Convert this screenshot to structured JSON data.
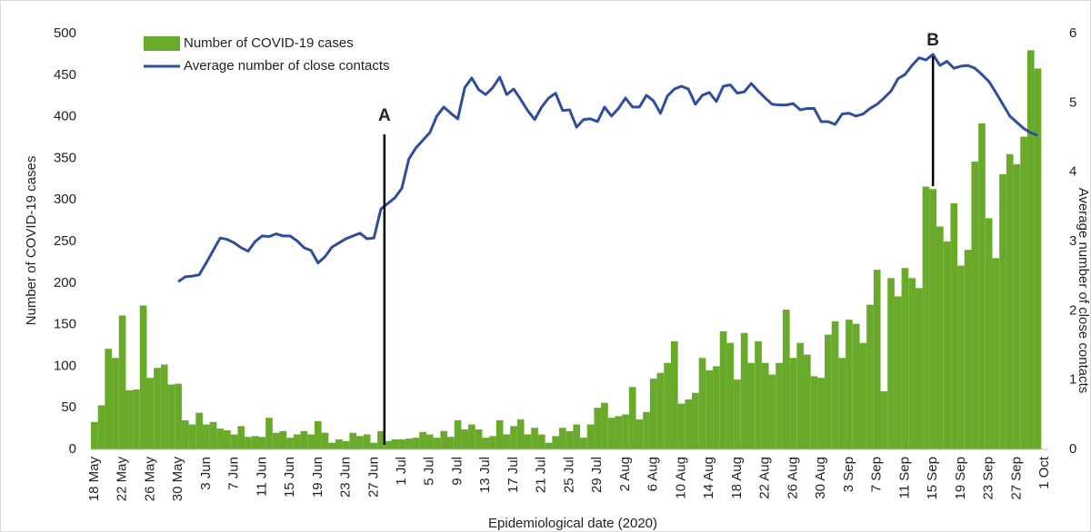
{
  "chart_data": {
    "type": "bar",
    "y_label": "Number of COVID-19 cases",
    "y2_label": "Average number of close contacts",
    "x_label": "Epidemiological date (2020)",
    "annotations": [
      "A",
      "B"
    ],
    "legend": "top-left",
    "categories": [
      "18 May",
      null,
      null,
      null,
      "22 May",
      null,
      null,
      null,
      "26 May",
      null,
      null,
      null,
      "30 May",
      null,
      null,
      null,
      "3 Jun",
      null,
      null,
      null,
      "7 Jun",
      null,
      null,
      null,
      "11 Jun",
      null,
      null,
      null,
      "15 Jun",
      null,
      null,
      null,
      "19 Jun",
      null,
      null,
      null,
      "23 Jun",
      null,
      null,
      null,
      "27 Jun",
      null,
      null,
      null,
      "1 Jul",
      null,
      null,
      null,
      "5 Jul",
      null,
      null,
      null,
      "9 Jul",
      null,
      null,
      null,
      "13 Jul",
      null,
      null,
      null,
      "17 Jul",
      null,
      null,
      null,
      "21 Jul",
      null,
      null,
      null,
      "25 Jul",
      null,
      null,
      null,
      "29 Jul",
      null,
      null,
      null,
      "2 Aug",
      null,
      null,
      null,
      "6 Aug",
      null,
      null,
      null,
      "10 Aug",
      null,
      null,
      null,
      "14 Aug",
      null,
      null,
      null,
      "18 Aug",
      null,
      null,
      null,
      "22 Aug",
      null,
      null,
      null,
      "26 Aug",
      null,
      null,
      null,
      "30 Aug",
      null,
      null,
      null,
      "3 Sep",
      null,
      null,
      null,
      "7 Sep",
      null,
      null,
      null,
      "11 Sep",
      null,
      null,
      null,
      "15 Sep",
      null,
      null,
      null,
      "19 Sep",
      null,
      null,
      null,
      "23 Sep",
      null,
      null,
      null,
      "27 Sep",
      null,
      null,
      null,
      "1 Oct"
    ],
    "series": [
      {
        "name": "Number of COVID-19 cases",
        "color": "#6aaa2a",
        "values": [
          33,
          53,
          121,
          110,
          161,
          71,
          72,
          173,
          86,
          98,
          102,
          78,
          79,
          35,
          30,
          44,
          30,
          33,
          25,
          23,
          18,
          28,
          15,
          16,
          15,
          38,
          20,
          22,
          14,
          18,
          22,
          18,
          34,
          20,
          8,
          12,
          10,
          20,
          16,
          18,
          8,
          22,
          10,
          12,
          12,
          13,
          14,
          21,
          18,
          14,
          22,
          15,
          35,
          24,
          30,
          24,
          14,
          16,
          35,
          18,
          28,
          36,
          18,
          26,
          18,
          8,
          16,
          26,
          22,
          30,
          14,
          30,
          50,
          56,
          38,
          40,
          42,
          75,
          36,
          45,
          85,
          92,
          104,
          130,
          55,
          60,
          68,
          110,
          95,
          100,
          142,
          128,
          84,
          140,
          104,
          130,
          104,
          90,
          104,
          168,
          110,
          128,
          114,
          88,
          86,
          138,
          154,
          110,
          156,
          151,
          128,
          174,
          216,
          70,
          206,
          184,
          218,
          206,
          194,
          316,
          313,
          268,
          250,
          296,
          221,
          240,
          346,
          392,
          278,
          230,
          331,
          355,
          343,
          376,
          480,
          458,
          null
        ]
      },
      {
        "name": "Average number of close contacts",
        "color": "#2f4f9e",
        "type": "line",
        "axis": "y2",
        "values": [
          null,
          null,
          null,
          null,
          null,
          null,
          null,
          null,
          null,
          null,
          null,
          null,
          2.42,
          2.49,
          2.5,
          2.52,
          2.69,
          2.87,
          3.05,
          3.03,
          2.98,
          2.91,
          2.86,
          3.0,
          3.08,
          3.07,
          3.11,
          3.08,
          3.08,
          3.01,
          2.91,
          2.87,
          2.69,
          2.78,
          2.92,
          2.98,
          3.04,
          3.08,
          3.12,
          3.04,
          3.05,
          3.47,
          3.55,
          3.63,
          3.77,
          4.19,
          4.35,
          4.46,
          4.57,
          4.81,
          4.94,
          4.85,
          4.77,
          5.22,
          5.36,
          5.19,
          5.12,
          5.22,
          5.37,
          5.12,
          5.2,
          5.05,
          4.89,
          4.76,
          4.94,
          5.07,
          5.14,
          4.89,
          4.9,
          4.65,
          4.76,
          4.77,
          4.73,
          4.94,
          4.81,
          4.92,
          5.07,
          4.94,
          4.94,
          5.11,
          5.03,
          4.85,
          5.1,
          5.2,
          5.24,
          5.2,
          4.98,
          5.11,
          5.15,
          5.02,
          5.24,
          5.26,
          5.14,
          5.16,
          5.28,
          5.17,
          5.07,
          4.98,
          4.97,
          4.97,
          4.99,
          4.9,
          4.92,
          4.92,
          4.73,
          4.73,
          4.69,
          4.84,
          4.85,
          4.81,
          4.84,
          4.92,
          4.98,
          5.07,
          5.17,
          5.35,
          5.41,
          5.54,
          5.65,
          5.62,
          5.7,
          5.54,
          5.6,
          5.5,
          5.53,
          5.54,
          5.5,
          5.41,
          5.31,
          5.15,
          4.98,
          4.81,
          4.72,
          4.63,
          4.57,
          4.53,
          null
        ]
      }
    ],
    "ylim": [
      0,
      500
    ],
    "yticks": [
      0,
      50,
      100,
      150,
      200,
      250,
      300,
      350,
      400,
      450,
      500
    ],
    "y2lim": [
      0,
      6
    ],
    "y2ticks": [
      0,
      1,
      2,
      3,
      4,
      5,
      6
    ]
  }
}
